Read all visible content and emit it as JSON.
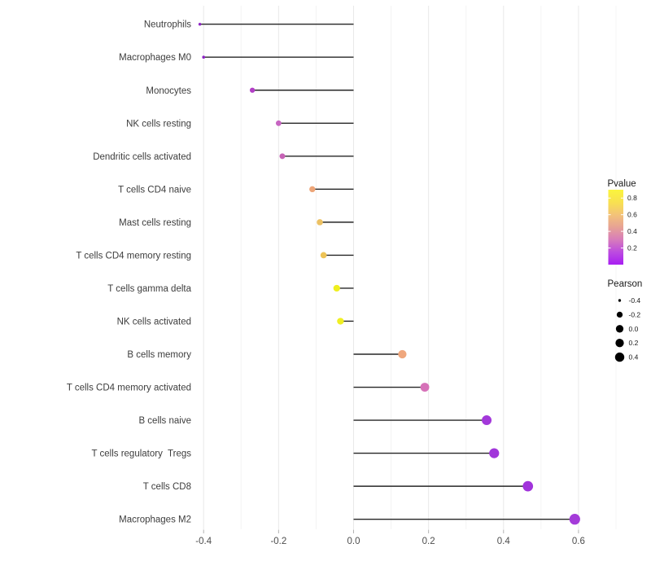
{
  "chart_data": {
    "type": "lollipop",
    "title": "",
    "xlabel": "",
    "ylabel": "",
    "background": "#ffffff",
    "x_axis": {
      "range": [
        -0.445,
        0.74
      ],
      "ticks": [
        {
          "value": -0.4,
          "label": "-0.4"
        },
        {
          "value": -0.2,
          "label": "-0.2"
        },
        {
          "value": 0.0,
          "label": "0.0"
        },
        {
          "value": 0.2,
          "label": "0.2"
        },
        {
          "value": 0.4,
          "label": "0.4"
        },
        {
          "value": 0.6,
          "label": "0.6"
        }
      ],
      "minor_gridlines": [
        -0.3,
        -0.1,
        0.1,
        0.3,
        0.5,
        0.7
      ]
    },
    "rows": [
      {
        "label": "Neutrophils",
        "pearson": -0.41,
        "dot_color": "#8E24C4",
        "dot_diameter": 3.5
      },
      {
        "label": "Macrophages M0",
        "pearson": -0.4,
        "dot_color": "#8E24C4",
        "dot_diameter": 3.6
      },
      {
        "label": "Monocytes",
        "pearson": -0.27,
        "dot_color": "#B23FC6",
        "dot_diameter": 6.3
      },
      {
        "label": "NK cells resting",
        "pearson": -0.2,
        "dot_color": "#C765C2",
        "dot_diameter": 6.8
      },
      {
        "label": "Dendritic cells activated",
        "pearson": -0.19,
        "dot_color": "#C763B6",
        "dot_diameter": 7.0
      },
      {
        "label": "T cells CD4 naive",
        "pearson": -0.11,
        "dot_color": "#EDA578",
        "dot_diameter": 7.4
      },
      {
        "label": "Mast cells resting",
        "pearson": -0.09,
        "dot_color": "#ECC163",
        "dot_diameter": 7.6
      },
      {
        "label": "T cells CD4 memory resting",
        "pearson": -0.08,
        "dot_color": "#EDC356",
        "dot_diameter": 7.7
      },
      {
        "label": "T cells gamma delta",
        "pearson": -0.045,
        "dot_color": "#EFEF1E",
        "dot_diameter": 8.2
      },
      {
        "label": "NK cells activated",
        "pearson": -0.035,
        "dot_color": "#F0EF23",
        "dot_diameter": 8.3
      },
      {
        "label": "B cells memory",
        "pearson": 0.13,
        "dot_color": "#EFA77D",
        "dot_diameter": 10.3
      },
      {
        "label": "T cells CD4 memory activated",
        "pearson": 0.19,
        "dot_color": "#D671B8",
        "dot_diameter": 10.9
      },
      {
        "label": "B cells naive",
        "pearson": 0.355,
        "dot_color": "#A338DA",
        "dot_diameter": 12.0
      },
      {
        "label": "T cells regulatory  Tregs",
        "pearson": 0.375,
        "dot_color": "#A136DA",
        "dot_diameter": 12.2
      },
      {
        "label": "T cells CD8",
        "pearson": 0.465,
        "dot_color": "#A133DB",
        "dot_diameter": 12.7
      },
      {
        "label": "Macrophages M2",
        "pearson": 0.59,
        "dot_color": "#A43BD9",
        "dot_diameter": 13.2
      }
    ],
    "legends": {
      "pvalue": {
        "title": "Pvalue",
        "tick_labels": [
          "0.8",
          "0.6",
          "0.4",
          "0.2"
        ],
        "scale_top_value": 0.9,
        "scale_bottom_value": 0.0,
        "gradient_top_to_bottom": [
          "#FBF53D",
          "#F8E150",
          "#F3C379",
          "#E7A295",
          "#D77CBB",
          "#BC4BE0",
          "#A81EF2"
        ]
      },
      "pearson": {
        "title": "Pearson",
        "dot_color": "#000000",
        "entries": [
          {
            "label": "-0.4",
            "dot_diameter": 3.4
          },
          {
            "label": "-0.2",
            "dot_diameter": 7.3
          },
          {
            "label": "0.0",
            "dot_diameter": 9.3
          },
          {
            "label": "0.2",
            "dot_diameter": 10.3
          },
          {
            "label": "0.4",
            "dot_diameter": 11.4
          }
        ]
      }
    },
    "stick_color": "#262626",
    "gridline_color_major": "#e9e9e9",
    "gridline_color_minor": "#f4f4f4",
    "axis_tick_color": "#b3b3b3"
  }
}
